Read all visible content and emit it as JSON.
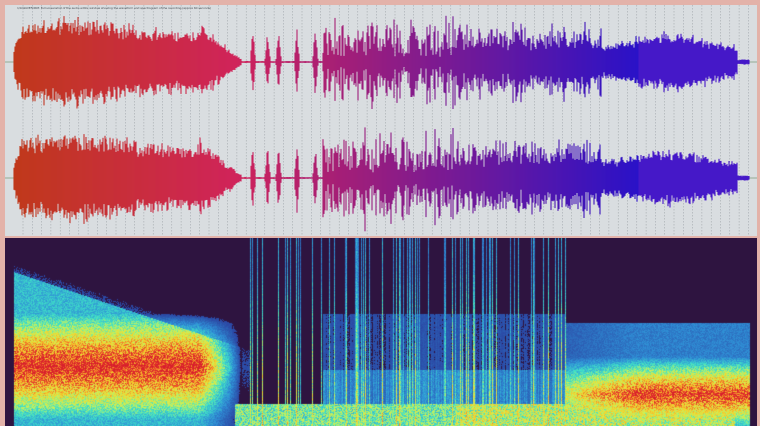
{
  "waveform": {
    "caption": "1/9-WAVEFORM: Full screenshot of the audio editor window showing the waveform and spectrogram of the recording (approx 60 seconds)",
    "channels": [
      "upper-channel",
      "lower-channel"
    ],
    "gradient_start_color": "#c0391b",
    "gradient_mid_color": "#d0245a",
    "gradient_end_color": "#2a12c8",
    "background_color": "#d9dde0",
    "center_line_color": "#7a9a7a",
    "grid_line_color": "#7d8389"
  },
  "spectrogram": {
    "background_color": "#2e1440",
    "colormap": [
      "#2e1440",
      "#2a3f9e",
      "#2f8fd6",
      "#3fe0c8",
      "#c9f25a",
      "#f5d12b",
      "#f0632a",
      "#d81e2c"
    ]
  }
}
